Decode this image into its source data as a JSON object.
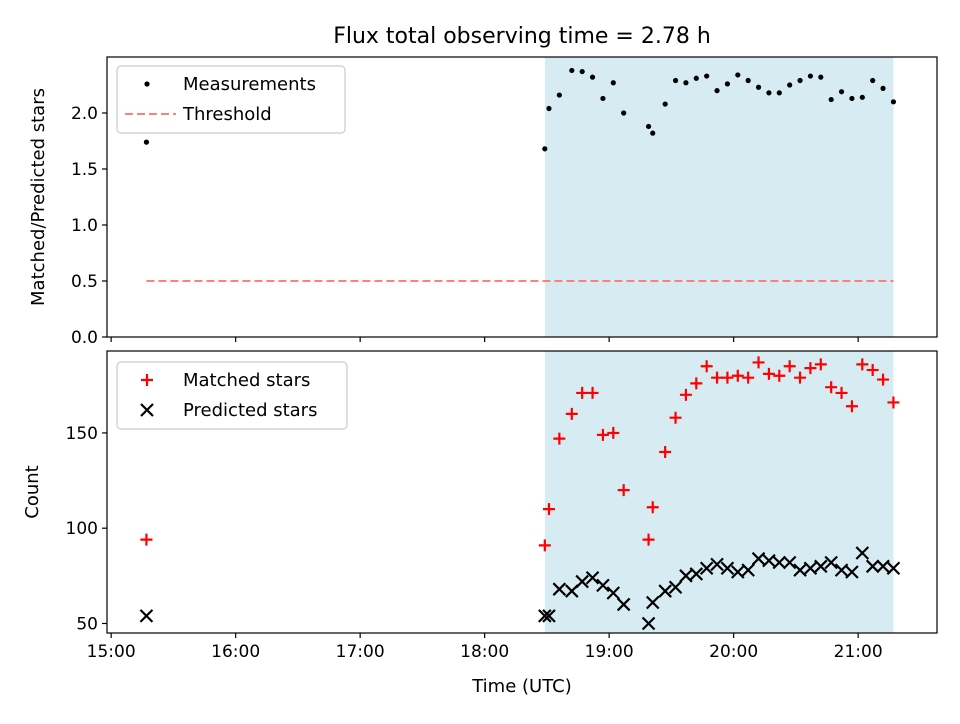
{
  "title": "Flux total observing time = 2.78 h",
  "xlabel": "Time (UTC)",
  "x_ticks": [
    "15:00",
    "16:00",
    "17:00",
    "18:00",
    "19:00",
    "20:00",
    "21:00"
  ],
  "chart_data": [
    {
      "type": "scatter",
      "ylabel": "Matched/Predicted stars",
      "ylim": [
        0,
        2.5
      ],
      "y_ticks": [
        "0.0",
        "0.5",
        "1.0",
        "1.5",
        "2.0"
      ],
      "xlim": [
        "14:58",
        "21:38"
      ],
      "shaded_region": {
        "x": [
          "18:29",
          "21:17"
        ],
        "color": "#add8e6"
      },
      "legend": {
        "position": "upper-left",
        "entries": [
          "Measurements",
          "Threshold"
        ]
      },
      "series": [
        {
          "name": "Measurements",
          "color": "#000000",
          "marker": "dot",
          "points": [
            [
              "15:17",
              1.74
            ],
            [
              "18:29",
              1.68
            ],
            [
              "18:31",
              2.04
            ],
            [
              "18:36",
              2.16
            ],
            [
              "18:42",
              2.38
            ],
            [
              "18:47",
              2.37
            ],
            [
              "18:52",
              2.32
            ],
            [
              "18:57",
              2.13
            ],
            [
              "19:02",
              2.27
            ],
            [
              "19:07",
              2.0
            ],
            [
              "19:19",
              1.88
            ],
            [
              "19:21",
              1.82
            ],
            [
              "19:27",
              2.08
            ],
            [
              "19:32",
              2.29
            ],
            [
              "19:37",
              2.27
            ],
            [
              "19:42",
              2.31
            ],
            [
              "19:47",
              2.33
            ],
            [
              "19:52",
              2.2
            ],
            [
              "19:57",
              2.26
            ],
            [
              "20:02",
              2.34
            ],
            [
              "20:07",
              2.29
            ],
            [
              "20:12",
              2.23
            ],
            [
              "20:17",
              2.18
            ],
            [
              "20:22",
              2.18
            ],
            [
              "20:27",
              2.25
            ],
            [
              "20:32",
              2.29
            ],
            [
              "20:37",
              2.33
            ],
            [
              "20:42",
              2.32
            ],
            [
              "20:47",
              2.12
            ],
            [
              "20:52",
              2.19
            ],
            [
              "20:57",
              2.13
            ],
            [
              "21:02",
              2.14
            ],
            [
              "21:07",
              2.29
            ],
            [
              "21:12",
              2.22
            ],
            [
              "21:17",
              2.1
            ]
          ]
        },
        {
          "name": "Threshold",
          "color": "#ff7f7f",
          "style": "dashed",
          "y": 0.5,
          "x": [
            "15:17",
            "21:17"
          ]
        }
      ]
    },
    {
      "type": "scatter",
      "ylabel": "Count",
      "ylim": [
        45,
        193
      ],
      "y_ticks": [
        "50",
        "100",
        "150"
      ],
      "xlim": [
        "14:58",
        "21:38"
      ],
      "shaded_region": {
        "x": [
          "18:29",
          "21:17"
        ],
        "color": "#add8e6"
      },
      "legend": {
        "position": "upper-left",
        "entries": [
          "Matched stars",
          "Predicted stars"
        ]
      },
      "series": [
        {
          "name": "Matched stars",
          "color": "#ff0000",
          "marker": "plus",
          "points": [
            [
              "15:17",
              94
            ],
            [
              "18:29",
              91
            ],
            [
              "18:31",
              110
            ],
            [
              "18:36",
              147
            ],
            [
              "18:42",
              160
            ],
            [
              "18:47",
              171
            ],
            [
              "18:52",
              171
            ],
            [
              "18:57",
              149
            ],
            [
              "19:02",
              150
            ],
            [
              "19:07",
              120
            ],
            [
              "19:19",
              94
            ],
            [
              "19:21",
              111
            ],
            [
              "19:27",
              140
            ],
            [
              "19:32",
              158
            ],
            [
              "19:37",
              170
            ],
            [
              "19:42",
              176
            ],
            [
              "19:47",
              185
            ],
            [
              "19:52",
              179
            ],
            [
              "19:57",
              179
            ],
            [
              "20:02",
              180
            ],
            [
              "20:07",
              179
            ],
            [
              "20:12",
              187
            ],
            [
              "20:17",
              181
            ],
            [
              "20:22",
              180
            ],
            [
              "20:27",
              185
            ],
            [
              "20:32",
              179
            ],
            [
              "20:37",
              184
            ],
            [
              "20:42",
              186
            ],
            [
              "20:47",
              174
            ],
            [
              "20:52",
              171
            ],
            [
              "20:57",
              164
            ],
            [
              "21:02",
              186
            ],
            [
              "21:07",
              183
            ],
            [
              "21:12",
              178
            ],
            [
              "21:17",
              166
            ]
          ]
        },
        {
          "name": "Predicted stars",
          "color": "#000000",
          "marker": "x",
          "points": [
            [
              "15:17",
              54
            ],
            [
              "18:29",
              54
            ],
            [
              "18:31",
              54
            ],
            [
              "18:36",
              68
            ],
            [
              "18:42",
              67
            ],
            [
              "18:47",
              72
            ],
            [
              "18:52",
              74
            ],
            [
              "18:57",
              70
            ],
            [
              "19:02",
              66
            ],
            [
              "19:07",
              60
            ],
            [
              "19:19",
              50
            ],
            [
              "19:21",
              61
            ],
            [
              "19:27",
              67
            ],
            [
              "19:32",
              69
            ],
            [
              "19:37",
              75
            ],
            [
              "19:42",
              76
            ],
            [
              "19:47",
              79
            ],
            [
              "19:52",
              81
            ],
            [
              "19:57",
              79
            ],
            [
              "20:02",
              77
            ],
            [
              "20:07",
              78
            ],
            [
              "20:12",
              84
            ],
            [
              "20:17",
              83
            ],
            [
              "20:22",
              82
            ],
            [
              "20:27",
              82
            ],
            [
              "20:32",
              78
            ],
            [
              "20:37",
              79
            ],
            [
              "20:42",
              80
            ],
            [
              "20:47",
              82
            ],
            [
              "20:52",
              78
            ],
            [
              "20:57",
              77
            ],
            [
              "21:02",
              87
            ],
            [
              "21:07",
              80
            ],
            [
              "21:12",
              80
            ],
            [
              "21:17",
              79
            ]
          ]
        }
      ]
    }
  ]
}
